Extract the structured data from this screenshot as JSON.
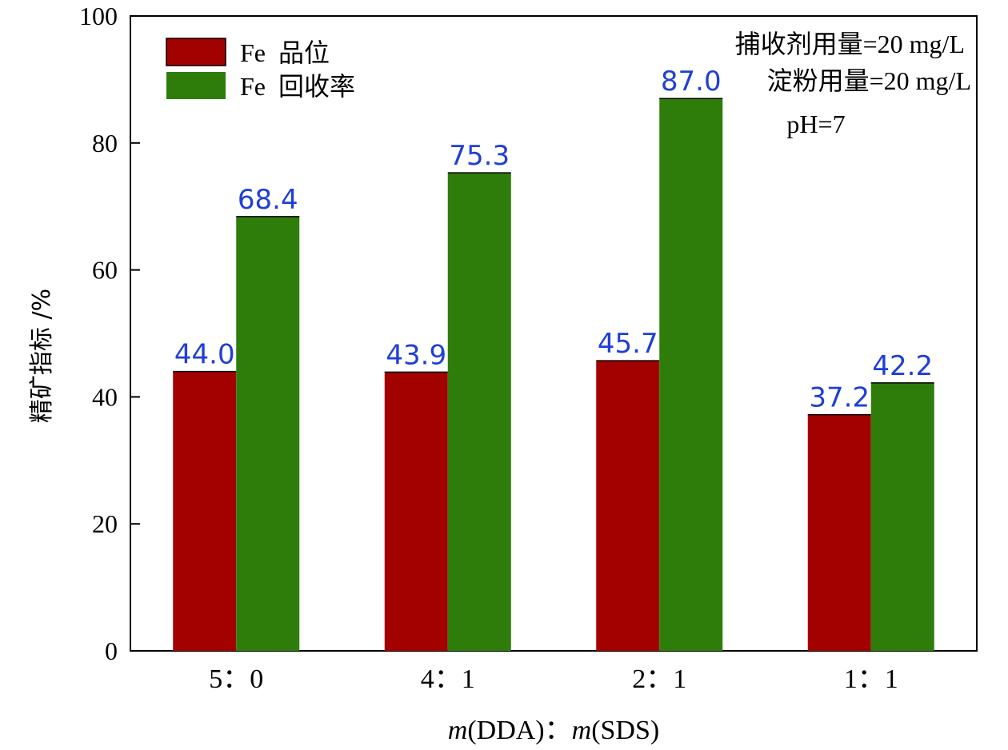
{
  "chart_data": {
    "type": "bar",
    "categories": [
      "5：0",
      "4：1",
      "2：1",
      "1：1"
    ],
    "series": [
      {
        "name": "Fe  品位",
        "color": "#a30000",
        "values": [
          44.0,
          43.9,
          45.7,
          37.2
        ]
      },
      {
        "name": "Fe  回收率",
        "color": "#2e7d0a",
        "values": [
          68.4,
          75.3,
          87.0,
          42.2
        ]
      }
    ],
    "data_labels": {
      "series_0": [
        "44.0",
        "43.9",
        "45.7",
        "37.2"
      ],
      "series_1": [
        "68.4",
        "75.3",
        "87.0",
        "42.2"
      ],
      "color": "#1f3fd6"
    },
    "yticks": [
      "0",
      "20",
      "40",
      "60",
      "80",
      "100"
    ],
    "ylim": [
      0,
      100
    ],
    "ylabel": "精矿指标  /%",
    "xlabel": {
      "m1": "m",
      "p1": "(DDA)",
      "sep": "：",
      "m2": "m",
      "p2": "(SDS)"
    },
    "annotations": [
      "捕收剂用量=20 mg/L",
      "淀粉用量=20 mg/L",
      "pH=7"
    ],
    "legend_position": "top-left",
    "grid": false
  }
}
